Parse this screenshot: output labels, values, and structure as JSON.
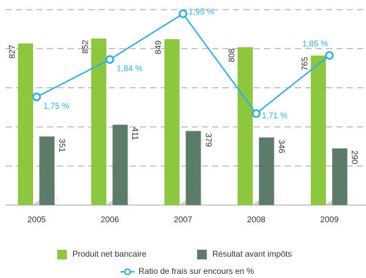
{
  "chart_data": {
    "type": "bar",
    "categories": [
      "2005",
      "2006",
      "2007",
      "2008",
      "2009"
    ],
    "series": [
      {
        "name": "Produit net bancaire",
        "color": "#8dc63f",
        "values": [
          827,
          852,
          849,
          808,
          765
        ]
      },
      {
        "name": "Résultat avant impôts",
        "color": "#5c7b69",
        "values": [
          351,
          411,
          379,
          346,
          290
        ]
      },
      {
        "name": "Ratio de frais sur encours en %",
        "color": "#2eaee0",
        "type": "line",
        "axis": "y2",
        "values": [
          1.75,
          1.84,
          1.95,
          1.71,
          1.85
        ],
        "value_labels": [
          "1,75 %",
          "1,84 %",
          "1,95 %",
          "1,71 %",
          "1,85 %"
        ]
      }
    ],
    "ylim": [
      0,
      1000
    ],
    "yticks": [
      200,
      400,
      600,
      800,
      1000
    ],
    "y2lim": [
      1.49,
      1.96
    ],
    "grid": true,
    "legend": "bottom"
  }
}
